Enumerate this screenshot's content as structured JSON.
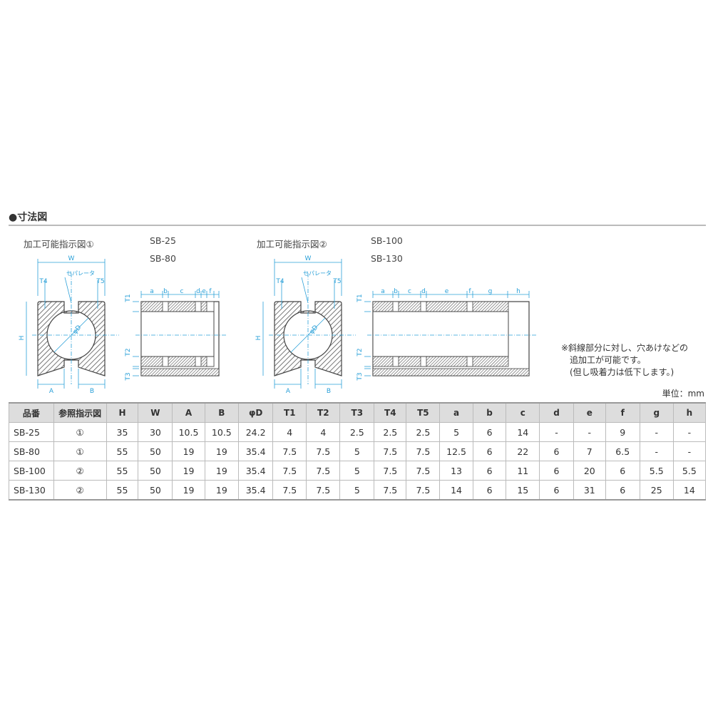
{
  "section_title": "●寸法図",
  "diagram1": {
    "title": "加工可能指示図①",
    "models": [
      "SB-25",
      "SB-80"
    ],
    "front_labels": {
      "W": "W",
      "T4": "T4",
      "T5": "T5",
      "H": "H",
      "A": "A",
      "B": "B",
      "separator": "セパレータ",
      "phiD": "φD"
    },
    "side_labels": [
      "a",
      "b",
      "c",
      "d",
      "e",
      "f"
    ],
    "side_vertical_labels": {
      "T1": "T1",
      "T2": "T2",
      "T3": "T3"
    }
  },
  "diagram2": {
    "title": "加工可能指示図②",
    "models": [
      "SB-100",
      "SB-130"
    ],
    "front_labels": {
      "W": "W",
      "T4": "T4",
      "T5": "T5",
      "H": "H",
      "A": "A",
      "B": "B",
      "separator": "セパレータ",
      "phiD": "φD"
    },
    "side_labels": [
      "a",
      "b",
      "c",
      "d",
      "e",
      "f",
      "g",
      "h"
    ],
    "side_vertical_labels": {
      "T1": "T1",
      "T2": "T2",
      "T3": "T3"
    }
  },
  "note_lines": [
    "※斜線部分に対し、穴あけなどの",
    "　追加工が可能です。",
    "　(但し吸着力は低下します。)"
  ],
  "unit": "単位：mm",
  "colors": {
    "dimension": "#2aa0d8",
    "header_bg": "#dddddd",
    "outline": "#444444"
  },
  "table": {
    "headers": [
      "品番",
      "参照指示図",
      "H",
      "W",
      "A",
      "B",
      "φD",
      "T1",
      "T2",
      "T3",
      "T4",
      "T5",
      "a",
      "b",
      "c",
      "d",
      "e",
      "f",
      "g",
      "h"
    ],
    "rows": [
      [
        "SB-25",
        "①",
        "35",
        "30",
        "10.5",
        "10.5",
        "24.2",
        "4",
        "4",
        "2.5",
        "2.5",
        "2.5",
        "5",
        "6",
        "14",
        "-",
        "-",
        "9",
        "-",
        "-"
      ],
      [
        "SB-80",
        "①",
        "55",
        "50",
        "19",
        "19",
        "35.4",
        "7.5",
        "7.5",
        "5",
        "7.5",
        "7.5",
        "12.5",
        "6",
        "22",
        "6",
        "7",
        "6.5",
        "-",
        "-"
      ],
      [
        "SB-100",
        "②",
        "55",
        "50",
        "19",
        "19",
        "35.4",
        "7.5",
        "7.5",
        "5",
        "7.5",
        "7.5",
        "13",
        "6",
        "11",
        "6",
        "20",
        "6",
        "5.5",
        "5.5"
      ],
      [
        "SB-130",
        "②",
        "55",
        "50",
        "19",
        "19",
        "35.4",
        "7.5",
        "7.5",
        "5",
        "7.5",
        "7.5",
        "14",
        "6",
        "15",
        "6",
        "31",
        "6",
        "25",
        "14"
      ]
    ]
  }
}
